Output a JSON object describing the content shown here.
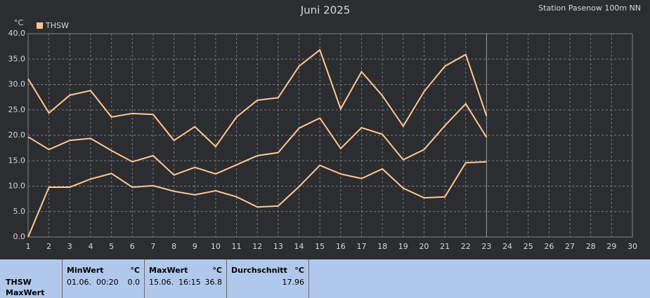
{
  "chart_data": {
    "type": "line",
    "title": "Juni 2025",
    "subtitle": "Station Pasenow 100m NN",
    "y_label": "°C",
    "x": [
      1,
      2,
      3,
      4,
      5,
      6,
      7,
      8,
      9,
      10,
      11,
      12,
      13,
      14,
      15,
      16,
      17,
      18,
      19,
      20,
      21,
      22,
      23
    ],
    "series": [
      {
        "name": "THSW",
        "color": "#ffc890",
        "values": [
          31.1,
          24.4,
          27.9,
          28.8,
          23.6,
          24.3,
          24.1,
          19.0,
          21.7,
          17.8,
          23.6,
          26.9,
          27.4,
          33.6,
          36.8,
          25.2,
          32.5,
          27.8,
          21.8,
          28.6,
          33.6,
          35.9,
          23.8
        ]
      },
      {
        "color": "#ffc890",
        "values": [
          19.7,
          17.2,
          19.0,
          19.4,
          17.0,
          14.8,
          16.0,
          12.2,
          13.7,
          12.4,
          14.2,
          16.0,
          16.6,
          21.4,
          23.4,
          17.4,
          21.5,
          20.2,
          15.2,
          17.2,
          21.9,
          26.2,
          19.6
        ]
      },
      {
        "color": "#ffc890",
        "values": [
          0.0,
          9.8,
          9.8,
          11.4,
          12.5,
          9.8,
          10.1,
          9.0,
          8.3,
          9.1,
          7.9,
          5.9,
          6.1,
          9.9,
          14.1,
          12.4,
          11.5,
          13.4,
          9.6,
          7.7,
          7.9,
          14.6,
          14.8
        ]
      }
    ],
    "xlim": [
      1,
      30
    ],
    "xticks": [
      1,
      2,
      3,
      4,
      5,
      6,
      7,
      8,
      9,
      10,
      11,
      12,
      13,
      14,
      15,
      16,
      17,
      18,
      19,
      20,
      21,
      22,
      23,
      24,
      25,
      26,
      27,
      28,
      29,
      30
    ],
    "ylim": [
      0,
      40
    ],
    "yticks": [
      {
        "value": 0,
        "label": "0.0"
      },
      {
        "value": 5,
        "label": "5.0"
      },
      {
        "value": 10,
        "label": "10.0"
      },
      {
        "value": 15,
        "label": "15.0"
      },
      {
        "value": 20,
        "label": "20.0"
      },
      {
        "value": 25,
        "label": "25.0"
      },
      {
        "value": 30,
        "label": "30.0"
      },
      {
        "value": 35,
        "label": "35.0"
      },
      {
        "value": 40,
        "label": "40.0"
      }
    ],
    "grid": true,
    "legend": "top-left"
  },
  "panel": {
    "label": "THSW",
    "sublabel": "MaxWert",
    "cols": [
      {
        "title": "MinWert",
        "unit": "°C",
        "date": "01.06.  00:20",
        "value": "0.0"
      },
      {
        "title": "MaxWert",
        "unit": "°C",
        "date": "15.06.  16:15",
        "value": "36.8"
      },
      {
        "title": "Durchschnitt",
        "unit": "°C",
        "value": "17.96"
      }
    ]
  }
}
